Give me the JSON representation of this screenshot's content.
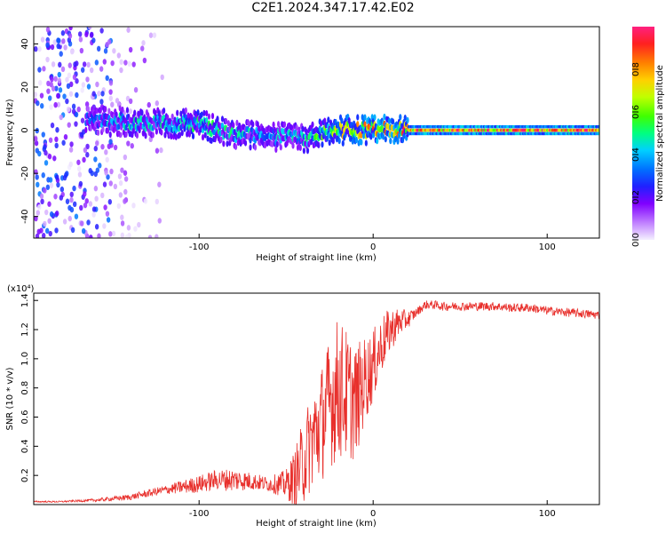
{
  "title": "C2E1.2024.347.17.42.E02",
  "chart_data": [
    {
      "type": "heatmap",
      "xlabel": "Height of straight line (km)",
      "ylabel": "Frequency (Hz)",
      "xlim": [
        -195,
        130
      ],
      "ylim": [
        -50,
        48
      ],
      "xticks": [
        -100,
        0,
        100
      ],
      "yticks": [
        -40,
        -20,
        0,
        20,
        40
      ],
      "colorbar": {
        "label": "Normalized spectral amplitude",
        "range": [
          0,
          1
        ],
        "ticks": [
          0.0,
          0.2,
          0.4,
          0.6,
          0.8
        ]
      },
      "features": [
        {
          "name": "noise",
          "x_range": [
            -195,
            -120
          ],
          "freq_range": [
            -50,
            48
          ],
          "amplitude": 0.15
        },
        {
          "name": "signal",
          "x": [
            -165,
            -140,
            -120,
            -100,
            -80,
            -60,
            -40,
            -20,
            0,
            20,
            50,
            100,
            130
          ],
          "freq": [
            4,
            4,
            3,
            3,
            -2,
            -3,
            -4,
            0,
            0,
            0,
            0,
            0,
            0
          ],
          "amplitude": [
            0.3,
            0.4,
            0.4,
            0.45,
            0.4,
            0.35,
            0.4,
            0.6,
            0.7,
            0.75,
            0.8,
            0.8,
            0.8
          ]
        }
      ],
      "grid": false
    },
    {
      "type": "line",
      "xlabel": "Height of straight line (km)",
      "ylabel": "SNR (10 * v/v)",
      "y_multiplier": "(x10⁴)",
      "xlim": [
        -195,
        130
      ],
      "ylim": [
        0,
        1.45
      ],
      "xticks": [
        -100,
        0,
        100
      ],
      "yticks": [
        0.2,
        0.4,
        0.6,
        0.8,
        1.0,
        1.2,
        1.4
      ],
      "series": [
        {
          "color": "#e8302c",
          "x": [
            -195,
            -180,
            -160,
            -140,
            -120,
            -100,
            -90,
            -80,
            -70,
            -60,
            -50,
            -45,
            -40,
            -35,
            -30,
            -25,
            -20,
            -15,
            -10,
            -5,
            0,
            5,
            10,
            15,
            20,
            25,
            30,
            35,
            40,
            50,
            60,
            70,
            80,
            90,
            100,
            110,
            120,
            130
          ],
          "y": [
            0.02,
            0.02,
            0.03,
            0.05,
            0.1,
            0.14,
            0.17,
            0.17,
            0.16,
            0.14,
            0.14,
            0.18,
            0.3,
            0.45,
            0.55,
            0.7,
            0.8,
            0.75,
            0.7,
            0.85,
            0.95,
            1.1,
            1.2,
            1.25,
            1.27,
            1.32,
            1.37,
            1.37,
            1.36,
            1.36,
            1.36,
            1.36,
            1.35,
            1.35,
            1.33,
            1.32,
            1.31,
            1.3
          ],
          "noise": [
            0.005,
            0.005,
            0.01,
            0.02,
            0.03,
            0.06,
            0.07,
            0.08,
            0.06,
            0.05,
            0.1,
            0.2,
            0.3,
            0.35,
            0.4,
            0.45,
            0.5,
            0.45,
            0.4,
            0.3,
            0.25,
            0.2,
            0.15,
            0.1,
            0.06,
            0.03,
            0.03,
            0.03,
            0.03,
            0.03,
            0.03,
            0.03,
            0.03,
            0.03,
            0.03,
            0.03,
            0.03,
            0.03
          ]
        }
      ],
      "grid": false
    }
  ]
}
